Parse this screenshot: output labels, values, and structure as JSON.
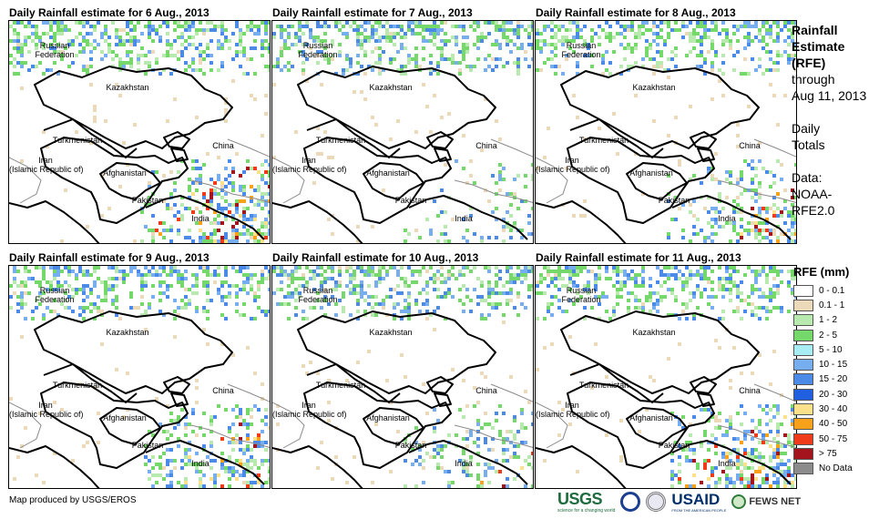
{
  "panels": [
    {
      "title": "Daily Rainfall estimate for 6 Aug., 2013",
      "intensity": 0.9,
      "seed": 11
    },
    {
      "title": "Daily Rainfall estimate for 7 Aug., 2013",
      "intensity": 0.35,
      "seed": 23
    },
    {
      "title": "Daily Rainfall estimate for 8 Aug., 2013",
      "intensity": 0.6,
      "seed": 37
    },
    {
      "title": "Daily Rainfall estimate for 9 Aug., 2013",
      "intensity": 0.75,
      "seed": 41
    },
    {
      "title": "Daily Rainfall estimate for 10 Aug., 2013",
      "intensity": 0.5,
      "seed": 53
    },
    {
      "title": "Daily Rainfall estimate for 11 Aug., 2013",
      "intensity": 0.85,
      "seed": 67
    }
  ],
  "map_labels": {
    "russia": "Russian\nFederation",
    "kazakhstan": "Kazakhstan",
    "turkmenistan": "Turkmenistan",
    "china": "China",
    "iran": "Iran\n(Islamic Republic of)",
    "afghanistan": "Afghanistan",
    "pakistan": "Pakistan",
    "india": "India"
  },
  "side_info": {
    "title_line1": "Rainfall",
    "title_line2": "Estimate",
    "title_line3": "(RFE)",
    "through": "through",
    "date": "Aug 11, 2013",
    "daily": "Daily",
    "totals": "Totals",
    "data_label": "Data:",
    "data_src1": "NOAA-",
    "data_src2": "RFE2.0"
  },
  "legend": {
    "title": "RFE (mm)",
    "items": [
      {
        "label": "0 - 0.1",
        "color": "#ffffff"
      },
      {
        "label": "0.1 - 1",
        "color": "#ecd9b9"
      },
      {
        "label": "1 - 2",
        "color": "#b8eab0"
      },
      {
        "label": "2 - 5",
        "color": "#74d96a"
      },
      {
        "label": "5 - 10",
        "color": "#a8ecf4"
      },
      {
        "label": "10 - 15",
        "color": "#76aef0"
      },
      {
        "label": "15 - 20",
        "color": "#4c8ae8"
      },
      {
        "label": "20 - 30",
        "color": "#2060e0"
      },
      {
        "label": "30 - 40",
        "color": "#fbe28a"
      },
      {
        "label": "40 - 50",
        "color": "#f7a21a"
      },
      {
        "label": "50 - 75",
        "color": "#ef3b1a"
      },
      {
        "label": "> 75",
        "color": "#a3141c"
      },
      {
        "label": "No Data",
        "color": "#8c8c8c"
      }
    ]
  },
  "credit": "Map produced by USGS/EROS",
  "logos": {
    "usgs": "USGS",
    "usgs_tag": "science for a changing world",
    "usaid": "USAID",
    "usaid_tag": "FROM THE AMERICAN PEOPLE",
    "fews": "FEWS NET"
  }
}
